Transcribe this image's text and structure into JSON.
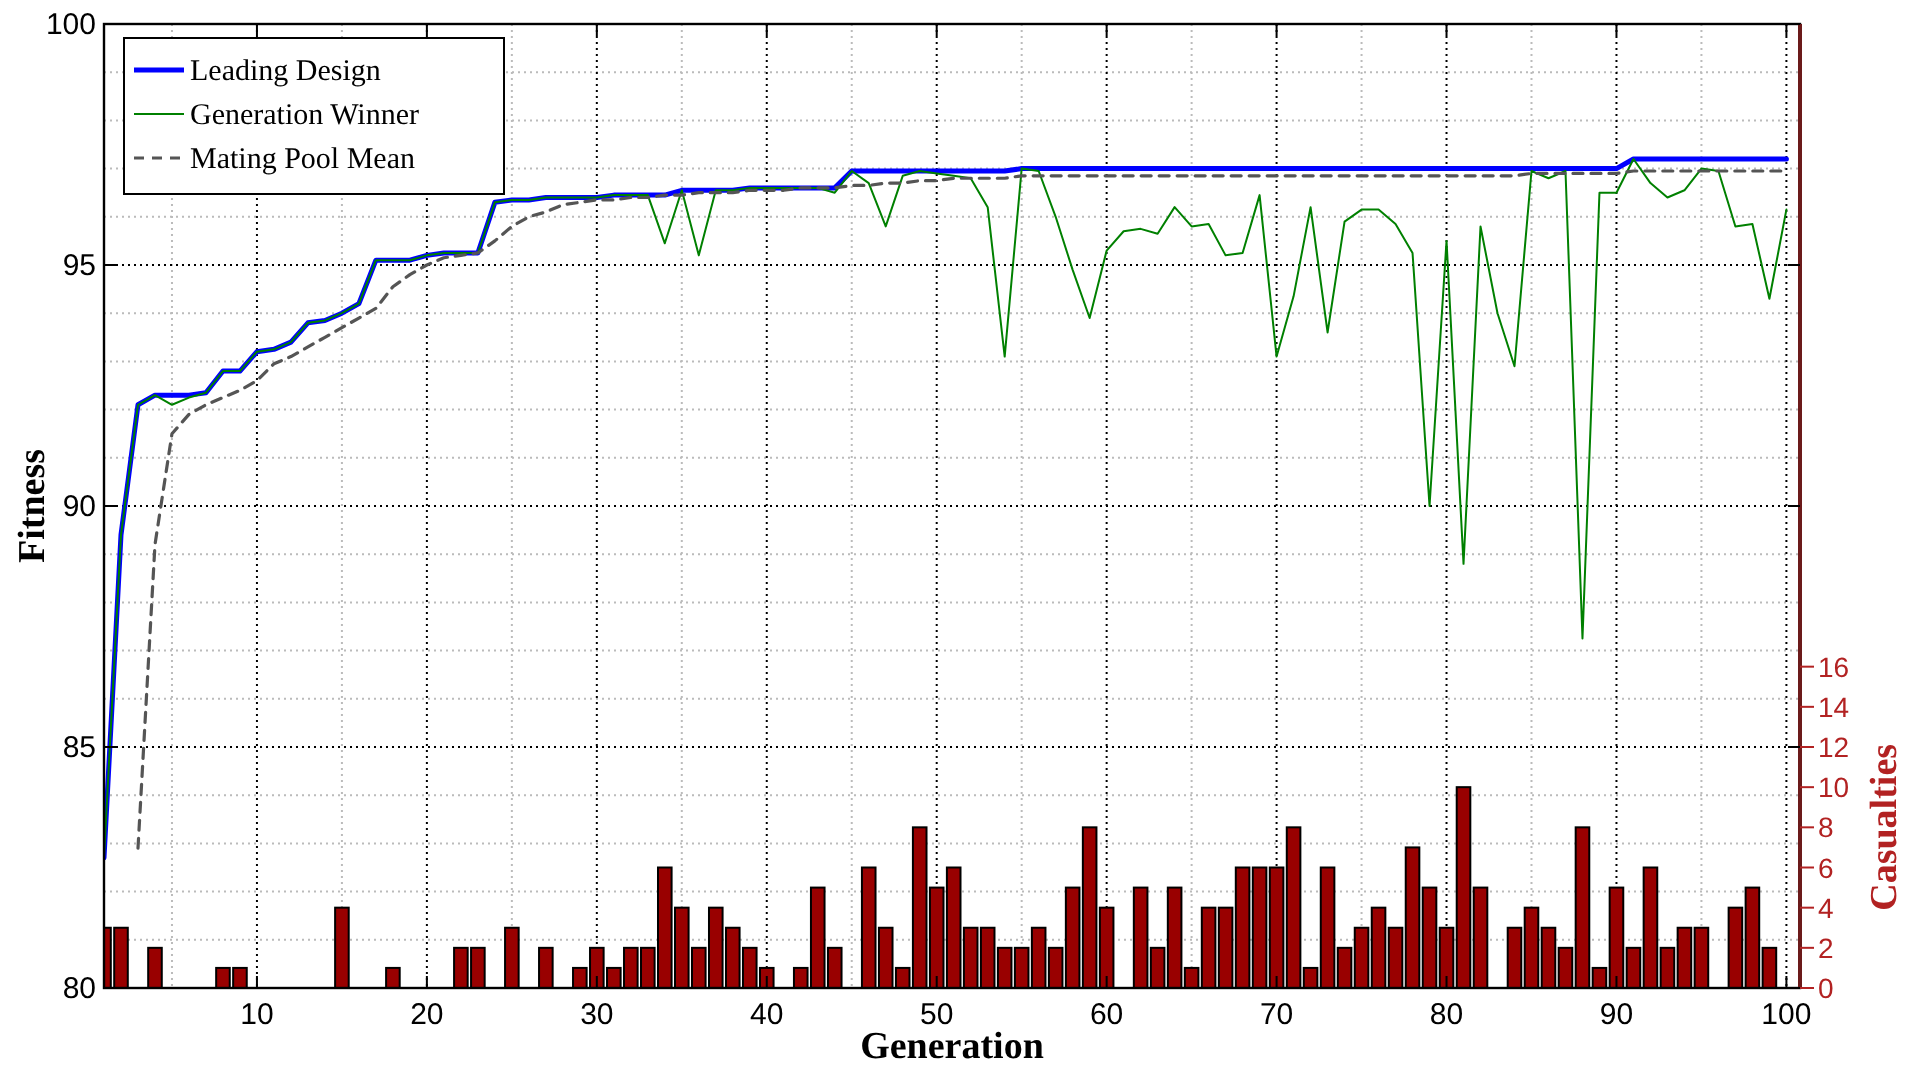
{
  "chart_data": {
    "type": "line",
    "xlabel": "Generation",
    "ylabel": "Fitness",
    "y2label": "Casualties",
    "x": [
      1,
      2,
      3,
      4,
      5,
      6,
      7,
      8,
      9,
      10,
      11,
      12,
      13,
      14,
      15,
      16,
      17,
      18,
      19,
      20,
      21,
      22,
      23,
      24,
      25,
      26,
      27,
      28,
      29,
      30,
      31,
      32,
      33,
      34,
      35,
      36,
      37,
      38,
      39,
      40,
      41,
      42,
      43,
      44,
      45,
      46,
      47,
      48,
      49,
      50,
      51,
      52,
      53,
      54,
      55,
      56,
      57,
      58,
      59,
      60,
      61,
      62,
      63,
      64,
      65,
      66,
      67,
      68,
      69,
      70,
      71,
      72,
      73,
      74,
      75,
      76,
      77,
      78,
      79,
      80,
      81,
      82,
      83,
      84,
      85,
      86,
      87,
      88,
      89,
      90,
      91,
      92,
      93,
      94,
      95,
      96,
      97,
      98,
      99,
      100
    ],
    "xlim": [
      1,
      100.8
    ],
    "xticks": [
      10,
      20,
      30,
      40,
      50,
      60,
      70,
      80,
      90,
      100
    ],
    "ylim": [
      80,
      100
    ],
    "yticks": [
      80,
      85,
      90,
      95,
      100
    ],
    "y2lim": [
      0,
      48
    ],
    "y2ticks": [
      0,
      2,
      4,
      6,
      8,
      10,
      12,
      14,
      16
    ],
    "grid": true,
    "legend": "top left",
    "series": [
      {
        "type": "bar",
        "axis": "y2",
        "color": "#990000",
        "values": [
          3,
          3,
          0,
          2,
          0,
          0,
          0,
          1,
          1,
          0,
          0,
          0,
          0,
          0,
          4,
          0,
          0,
          1,
          0,
          0,
          0,
          2,
          2,
          0,
          3,
          0,
          2,
          0,
          1,
          2,
          1,
          2,
          2,
          6,
          4,
          2,
          4,
          3,
          2,
          1,
          0,
          1,
          5,
          2,
          0,
          6,
          3,
          1,
          8,
          5,
          6,
          3,
          3,
          2,
          2,
          3,
          2,
          5,
          8,
          4,
          0,
          5,
          2,
          5,
          1,
          4,
          4,
          6,
          6,
          6,
          8,
          1,
          6,
          2,
          3,
          4,
          3,
          7,
          5,
          3,
          10,
          5,
          0,
          3,
          4,
          3,
          2,
          8,
          1,
          5,
          2,
          6,
          2,
          3,
          3,
          0,
          4,
          5,
          2,
          0
        ]
      },
      {
        "name": "Leading Design",
        "color": "#0000ff",
        "line_style": "solid",
        "values": [
          82.7,
          89.4,
          92.1,
          92.3,
          92.3,
          92.3,
          92.35,
          92.8,
          92.8,
          93.2,
          93.25,
          93.4,
          93.8,
          93.85,
          94.0,
          94.2,
          95.1,
          95.1,
          95.1,
          95.2,
          95.25,
          95.25,
          95.25,
          96.3,
          96.35,
          96.35,
          96.4,
          96.4,
          96.4,
          96.4,
          96.45,
          96.45,
          96.45,
          96.45,
          96.55,
          96.55,
          96.55,
          96.55,
          96.6,
          96.6,
          96.6,
          96.6,
          96.6,
          96.6,
          96.95,
          96.95,
          96.95,
          96.95,
          96.95,
          96.95,
          96.95,
          96.95,
          96.95,
          96.95,
          97.0,
          97.0,
          97.0,
          97.0,
          97.0,
          97.0,
          97.0,
          97.0,
          97.0,
          97.0,
          97.0,
          97.0,
          97.0,
          97.0,
          97.0,
          97.0,
          97.0,
          97.0,
          97.0,
          97.0,
          97.0,
          97.0,
          97.0,
          97.0,
          97.0,
          97.0,
          97.0,
          97.0,
          97.0,
          97.0,
          97.0,
          97.0,
          97.0,
          97.0,
          97.0,
          97.0,
          97.2,
          97.2,
          97.2,
          97.2,
          97.2,
          97.2,
          97.2,
          97.2,
          97.2,
          97.2
        ]
      },
      {
        "name": "Generation Winner",
        "color": "#008000",
        "line_style": "solid",
        "values": [
          82.7,
          89.4,
          92.1,
          92.3,
          92.1,
          92.25,
          92.35,
          92.8,
          92.8,
          93.2,
          93.25,
          93.4,
          93.8,
          93.85,
          94.0,
          94.2,
          95.1,
          95.1,
          95.1,
          95.2,
          95.25,
          95.25,
          95.25,
          96.3,
          96.35,
          96.35,
          96.4,
          96.4,
          96.4,
          96.4,
          96.45,
          96.45,
          96.45,
          95.45,
          96.55,
          95.2,
          96.55,
          96.55,
          96.6,
          96.6,
          96.6,
          96.6,
          96.6,
          96.5,
          96.95,
          96.7,
          95.8,
          96.85,
          96.95,
          96.9,
          96.85,
          96.8,
          96.2,
          93.1,
          97.0,
          96.95,
          96.0,
          94.9,
          93.9,
          95.3,
          95.7,
          95.75,
          95.65,
          96.2,
          95.8,
          95.85,
          95.2,
          95.25,
          96.45,
          93.1,
          94.35,
          96.2,
          93.6,
          95.9,
          96.15,
          96.15,
          95.85,
          95.25,
          90.0,
          95.5,
          88.8,
          95.8,
          94.0,
          92.9,
          96.95,
          96.8,
          96.95,
          87.25,
          96.5,
          96.5,
          97.2,
          96.7,
          96.4,
          96.55,
          97.0,
          96.95,
          95.8,
          95.85,
          94.3,
          96.15
        ]
      },
      {
        "name": "Mating Pool Mean",
        "color": "#555555",
        "line_style": "dashed",
        "values": [
          null,
          null,
          82.9,
          89.2,
          91.5,
          91.9,
          92.1,
          92.25,
          92.4,
          92.6,
          92.95,
          93.1,
          93.3,
          93.5,
          93.7,
          93.9,
          94.1,
          94.55,
          94.8,
          95.0,
          95.15,
          95.2,
          95.25,
          95.5,
          95.8,
          96.0,
          96.1,
          96.25,
          96.3,
          96.35,
          96.35,
          96.4,
          96.4,
          96.45,
          96.45,
          96.5,
          96.5,
          96.5,
          96.55,
          96.55,
          96.55,
          96.6,
          96.6,
          96.6,
          96.65,
          96.65,
          96.7,
          96.7,
          96.75,
          96.75,
          96.8,
          96.8,
          96.8,
          96.8,
          96.85,
          96.85,
          96.85,
          96.85,
          96.85,
          96.85,
          96.85,
          96.85,
          96.85,
          96.85,
          96.85,
          96.85,
          96.85,
          96.85,
          96.85,
          96.85,
          96.85,
          96.85,
          96.85,
          96.85,
          96.85,
          96.85,
          96.85,
          96.85,
          96.85,
          96.85,
          96.85,
          96.85,
          96.85,
          96.85,
          96.9,
          96.9,
          96.9,
          96.9,
          96.9,
          96.9,
          96.95,
          96.95,
          96.95,
          96.95,
          96.95,
          96.95,
          96.95,
          96.95,
          96.95,
          96.95
        ]
      }
    ]
  }
}
